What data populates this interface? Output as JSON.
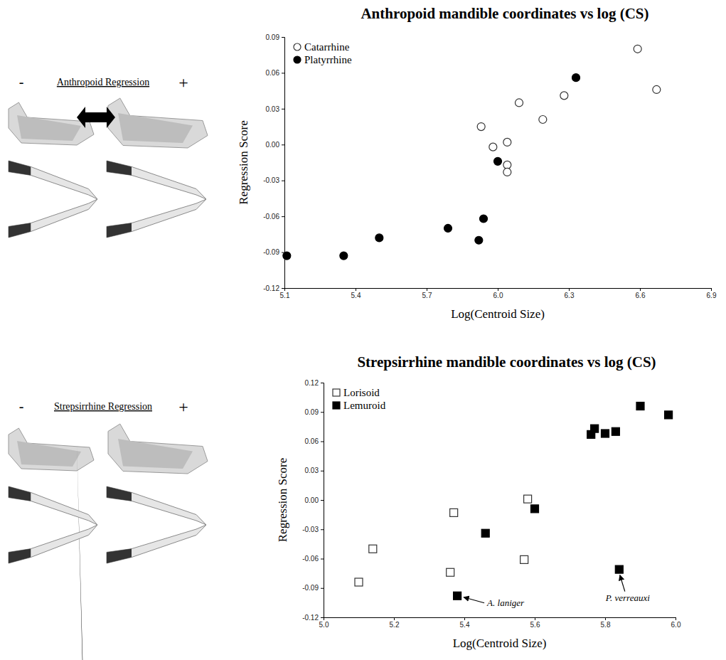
{
  "chart_data": [
    {
      "type": "scatter",
      "title": "Anthropoid mandible coordinates vs log (CS)",
      "x_label": "Log(Centroid Size)",
      "y_label": "Regression Score",
      "regression_label": {
        "minus": "-",
        "text": "Anthropoid Regression",
        "plus": "+"
      },
      "xlim": [
        5.1,
        6.9
      ],
      "ylim": [
        -0.12,
        0.09
      ],
      "xticks": [
        5.1,
        5.4,
        5.7,
        {
          "value": 6,
          "label": "6.0"
        },
        6.3,
        6.6,
        6.9
      ],
      "yticks": [
        -0.12,
        -0.09,
        -0.06,
        -0.03,
        {
          "value": 0,
          "label": "0.00"
        },
        0.03,
        0.06,
        0.09
      ],
      "legend": "top-left",
      "grid": false,
      "series": [
        {
          "name": "Catarrhine",
          "color": "#333333",
          "marker": "circle-open",
          "x": [
            5.93,
            5.98,
            6.04,
            6.04,
            6.04,
            6.09,
            6.19,
            6.28,
            6.59,
            6.67
          ],
          "values": [
            0.015,
            -0.002,
            0.002,
            -0.017,
            -0.023,
            0.035,
            0.021,
            0.041,
            0.08,
            0.046
          ]
        },
        {
          "name": "Platyrrhine",
          "color": "#000000",
          "marker": "circle",
          "x": [
            5.11,
            5.35,
            5.5,
            5.79,
            5.92,
            5.94,
            6.0,
            6.33
          ],
          "values": [
            -0.093,
            -0.093,
            -0.078,
            -0.07,
            -0.08,
            -0.062,
            -0.014,
            0.056
          ]
        }
      ]
    },
    {
      "type": "scatter",
      "title": "Strepsirrhine mandible coordinates vs log (CS)",
      "x_label": "Log(Centroid Size)",
      "y_label": "Regression Score",
      "regression_label": {
        "minus": "-",
        "text": "Strepsirrhine Regression",
        "plus": "+"
      },
      "xlim": [
        5.0,
        6.0
      ],
      "ylim": [
        -0.12,
        0.12
      ],
      "xticks": [
        {
          "value": 5,
          "label": "5.0"
        },
        5.2,
        5.4,
        5.6,
        5.8,
        {
          "value": 6,
          "label": "6.0"
        }
      ],
      "yticks": [
        -0.12,
        -0.09,
        -0.06,
        -0.03,
        {
          "value": 0,
          "label": "0.00"
        },
        0.03,
        0.06,
        0.09,
        0.12
      ],
      "legend": "top-left",
      "grid": false,
      "series": [
        {
          "name": "Lorisoid",
          "color": "#333333",
          "marker": "square-open",
          "x": [
            5.1,
            5.14,
            5.36,
            5.37,
            5.57,
            5.58
          ],
          "values": [
            -0.084,
            -0.05,
            -0.074,
            -0.013,
            -0.061,
            0.001
          ]
        },
        {
          "name": "Lemuroid",
          "color": "#000000",
          "marker": "square",
          "x": [
            5.38,
            5.46,
            5.6,
            5.76,
            5.77,
            5.8,
            5.83,
            5.84,
            5.9,
            5.98
          ],
          "values": [
            -0.098,
            -0.034,
            -0.009,
            0.067,
            0.073,
            0.068,
            0.07,
            -0.071,
            0.096,
            0.087
          ]
        }
      ],
      "annotations": [
        {
          "text": "A. laniger",
          "x": 5.38,
          "y": -0.098
        },
        {
          "text": "P. verreauxi",
          "x": 5.84,
          "y": -0.071
        }
      ]
    }
  ]
}
